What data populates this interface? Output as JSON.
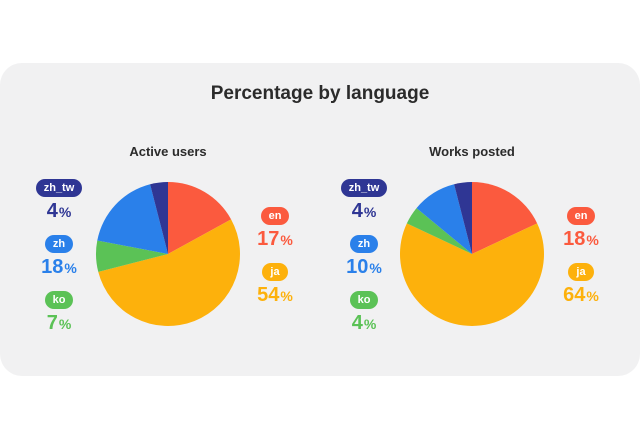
{
  "title": "Percentage by language",
  "unit": "%",
  "colors": {
    "en": "#fb5a3e",
    "ja": "#fdb10c",
    "ko": "#5bc256",
    "zh": "#2a80ea",
    "zh_tw": "#2f3694"
  },
  "chart_data": [
    {
      "type": "pie",
      "title": "Active users",
      "categories": [
        "en",
        "ja",
        "ko",
        "zh",
        "zh_tw"
      ],
      "values": [
        17,
        54,
        7,
        18,
        4
      ]
    },
    {
      "type": "pie",
      "title": "Works posted",
      "categories": [
        "en",
        "ja",
        "ko",
        "zh",
        "zh_tw"
      ],
      "values": [
        18,
        64,
        4,
        10,
        4
      ]
    }
  ]
}
